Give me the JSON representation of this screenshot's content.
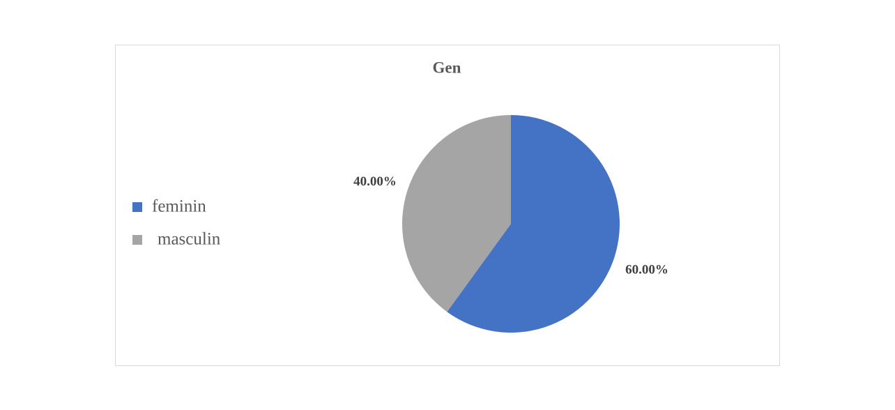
{
  "chart_data": {
    "type": "pie",
    "title": "Gen",
    "categories": [
      "feminin",
      "masculin"
    ],
    "values": [
      60,
      40
    ],
    "value_labels": [
      "60.00%",
      "40.00%"
    ],
    "colors": [
      "#4472c4",
      "#a5a5a5"
    ],
    "legend": "left"
  }
}
